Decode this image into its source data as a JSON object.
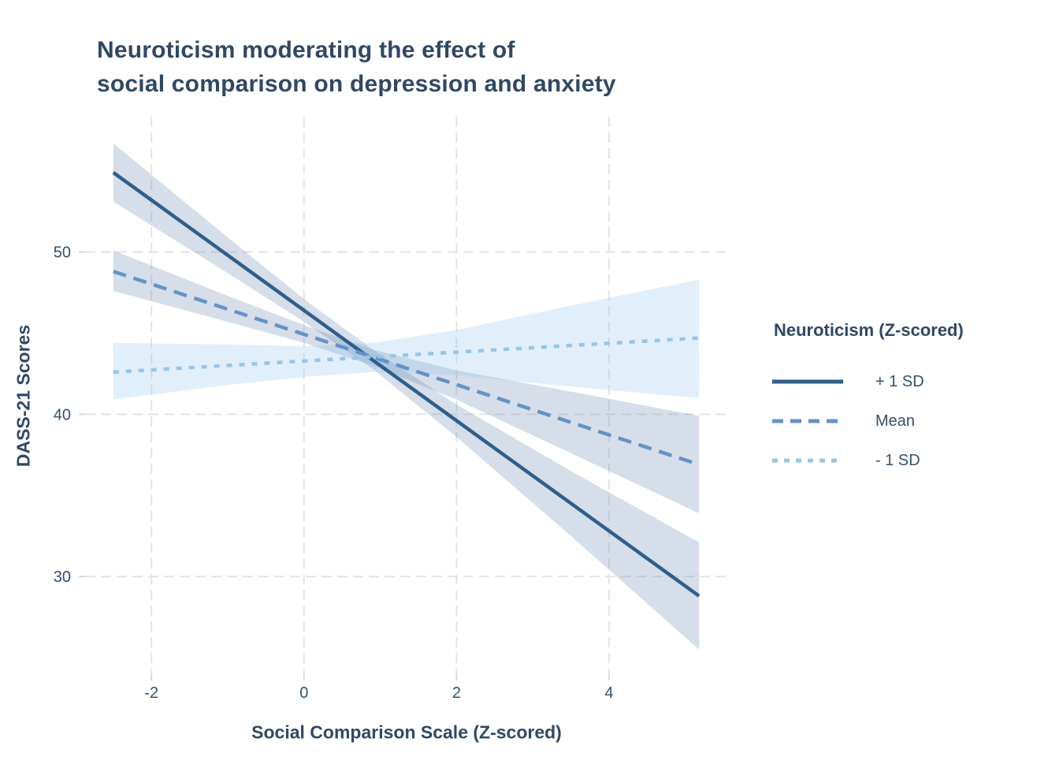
{
  "chart_data": {
    "type": "line",
    "title_line1": "Neuroticism moderating the effect of",
    "title_line2": "social comparison on depression and anxiety",
    "xlabel": "Social Comparison Scale (Z-scored)",
    "ylabel": "DASS-21 Scores",
    "legend": {
      "title": "Neuroticism (Z-scored)",
      "position": "right"
    },
    "axes": {
      "xlim": [
        -2.87,
        5.55
      ],
      "ylim": [
        23.98,
        58.34
      ],
      "xticks": [
        -2,
        0,
        2,
        4
      ],
      "yticks": [
        30,
        40,
        50
      ],
      "grid": "dashed"
    },
    "colors": {
      "title_text": "#2F4865",
      "tick_text": "#35506B",
      "grid": "#E4E4E4",
      "tick_mark": "#D9D9D9",
      "plus1sd_line": "#2C5F8E",
      "mean_line": "#6094C8",
      "minus1sd_line": "#93C6ED"
    },
    "series": [
      {
        "name": "+ 1 SD",
        "style": "solid",
        "color": "#2C5F8E",
        "ribbon_fill": "rgba(95,128,170,0.26)",
        "line": {
          "x": [
            -2.5,
            5.18
          ],
          "y": [
            54.9,
            28.8
          ]
        },
        "ci": {
          "x": [
            -2.5,
            -1.0,
            0.0,
            0.9,
            2.0,
            3.5,
            5.18
          ],
          "lo": [
            53.1,
            48.7,
            45.7,
            42.8,
            38.6,
            32.5,
            25.5
          ],
          "hi": [
            56.7,
            50.9,
            47.1,
            44.0,
            40.6,
            36.5,
            32.1
          ]
        }
      },
      {
        "name": "Mean",
        "style": "dashed",
        "color": "#6094C8",
        "ribbon_fill": "rgba(95,128,170,0.26)",
        "line": {
          "x": [
            -2.5,
            5.18
          ],
          "y": [
            48.8,
            36.9
          ]
        },
        "ci": {
          "x": [
            -2.5,
            -1.0,
            0.0,
            0.9,
            2.0,
            3.5,
            5.18
          ],
          "lo": [
            47.6,
            45.7,
            44.4,
            43.0,
            40.9,
            37.6,
            33.9
          ],
          "hi": [
            50.1,
            47.3,
            45.5,
            44.0,
            42.7,
            41.4,
            39.9
          ]
        }
      },
      {
        "name": "- 1 SD",
        "style": "dotted",
        "color": "#93C6ED",
        "ribbon_fill": "rgba(147,198,237,0.28)",
        "line": {
          "x": [
            -2.5,
            5.18
          ],
          "y": [
            42.6,
            44.7
          ]
        },
        "ci": {
          "x": [
            -2.5,
            -1.0,
            0.0,
            0.9,
            2.0,
            3.5,
            5.18
          ],
          "lo": [
            40.9,
            41.8,
            42.3,
            42.6,
            42.4,
            41.7,
            41.0
          ],
          "hi": [
            44.4,
            44.3,
            44.2,
            44.4,
            45.2,
            46.7,
            48.3
          ]
        }
      }
    ]
  }
}
